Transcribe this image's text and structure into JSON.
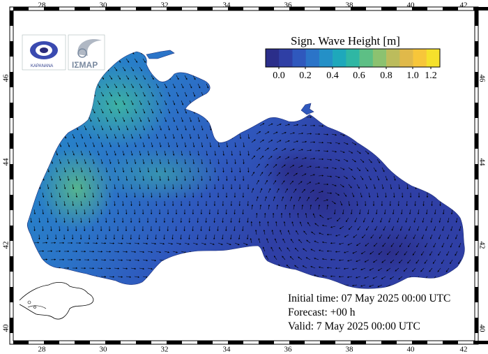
{
  "map": {
    "legend": {
      "title": "Sign. Wave Height [m]",
      "ticks": [
        "0.0",
        "0.2",
        "0.4",
        "0.6",
        "0.8",
        "1.0",
        "1.2"
      ],
      "colors": [
        "#2b2e8a",
        "#2f3fa5",
        "#2f58bd",
        "#2b74c8",
        "#2490c7",
        "#1ea8bb",
        "#2fb7a4",
        "#5dbf85",
        "#8cc270",
        "#bcbc5c",
        "#e0b94a",
        "#f7c63a",
        "#f5e12c"
      ]
    },
    "lon_ticks": [
      "28",
      "30",
      "32",
      "34",
      "36",
      "38",
      "40",
      "42"
    ],
    "lat_ticks": [
      "40",
      "42",
      "44",
      "46"
    ],
    "info": {
      "initial": "Initial time: 07 May 2025 00:00 UTC",
      "forecast": "Forecast: +00 h",
      "valid": "Valid:  7 May 2025 00:00 UTC"
    },
    "logo_text": "ΚΑΡΑΝΑΝΑ",
    "logo2_text": "ΙΣΜΑΡ"
  }
}
